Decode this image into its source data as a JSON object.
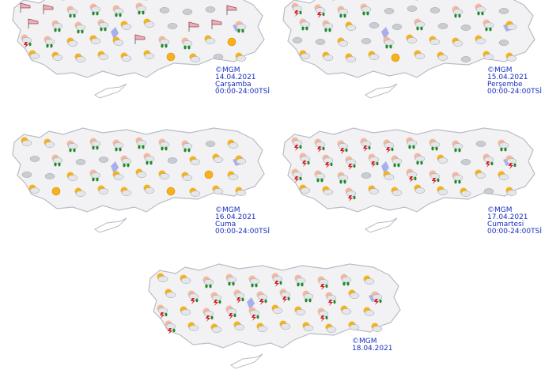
{
  "colors": {
    "land": "#f2f2f4",
    "border": "#b9bcc4",
    "lake": "#a8b0ec",
    "caption": "#1a2fbf",
    "sun": "#f5b21a",
    "rain": "#1e8a2a",
    "thunder": "#d42020",
    "cloud": "#c9ccd2"
  },
  "maps": [
    {
      "copyright": "©MGM",
      "date": "14.04.2021",
      "day": "Çarşamba",
      "period": "00:00-24:00TSİ",
      "icons": [
        "wind",
        "wind",
        "rain",
        "rain",
        "rain",
        "rain",
        "cloud",
        "cloud",
        "cloud",
        "wind",
        "wind",
        "rain",
        "rain",
        "rain",
        "partly-cloudy",
        "partly-cloudy",
        "cloud",
        "wind",
        "wind",
        "rain",
        "thunder",
        "rain",
        "partly-cloudy",
        "partly-cloudy",
        "partly-cloudy",
        "wind",
        "rain",
        "rain",
        "partly-cloudy",
        "sunny",
        "partly-cloudy",
        "partly-cloudy",
        "partly-cloudy",
        "partly-cloudy",
        "partly-cloudy",
        "partly-cloudy",
        "sunny",
        "partly-cloudy",
        "cloud",
        "partly-cloudy"
      ]
    },
    {
      "copyright": "©MGM",
      "date": "15.04.2021",
      "day": "Perşembe",
      "period": "00:00-24:00TSİ",
      "icons": [
        "thunder",
        "thunder",
        "rain",
        "rain",
        "cloud",
        "cloud",
        "cloud",
        "rain",
        "rain",
        "cloud",
        "rain",
        "rain",
        "partly-cloudy",
        "cloud",
        "cloud",
        "rain",
        "cloud",
        "cloud",
        "rain",
        "partly-cloudy",
        "cloud",
        "cloud",
        "partly-cloudy",
        "cloud",
        "rain",
        "partly-cloudy",
        "partly-cloudy",
        "partly-cloudy",
        "partly-cloudy",
        "cloud",
        "partly-cloudy",
        "partly-cloudy",
        "partly-cloudy",
        "partly-cloudy",
        "sunny",
        "partly-cloudy",
        "partly-cloudy",
        "cloud",
        "partly-cloudy",
        "partly-cloudy"
      ]
    },
    {
      "copyright": "©MGM",
      "date": "16.04.2021",
      "day": "Cuma",
      "period": "00:00-24:00TSİ",
      "icons": [
        "partly-cloudy",
        "partly-cloudy",
        "rain",
        "rain",
        "rain",
        "rain",
        "rain",
        "rain",
        "cloud",
        "partly-cloudy",
        "cloud",
        "rain",
        "cloud",
        "cloud",
        "rain",
        "rain",
        "cloud",
        "partly-cloudy",
        "partly-cloudy",
        "partly-cloudy",
        "cloud",
        "cloud",
        "partly-cloudy",
        "rain",
        "partly-cloudy",
        "partly-cloudy",
        "partly-cloudy",
        "partly-cloudy",
        "sunny",
        "partly-cloudy",
        "partly-cloudy",
        "sunny",
        "partly-cloudy",
        "partly-cloudy",
        "partly-cloudy",
        "partly-cloudy",
        "sunny",
        "partly-cloudy",
        "partly-cloudy",
        "partly-cloudy"
      ]
    },
    {
      "copyright": "©MGM",
      "date": "17.04.2021",
      "day": "Cumartesi",
      "period": "00:00-24:00TSİ",
      "icons": [
        "thunder",
        "thunder",
        "thunder",
        "thunder",
        "thunder",
        "rain",
        "rain",
        "rain",
        "cloud",
        "rain",
        "thunder",
        "thunder",
        "thunder",
        "thunder",
        "rain",
        "rain",
        "partly-cloudy",
        "cloud",
        "thunder",
        "thunder",
        "thunder",
        "rain",
        "rain",
        "cloud",
        "partly-cloudy",
        "thunder",
        "thunder",
        "rain",
        "partly-cloudy",
        "partly-cloudy",
        "partly-cloudy",
        "partly-cloudy",
        "thunder",
        "partly-cloudy",
        "partly-cloudy",
        "partly-cloudy",
        "partly-cloudy",
        "partly-cloudy",
        "cloud",
        "partly-cloudy"
      ]
    },
    {
      "copyright": "©MGM",
      "date": "18.04.2021",
      "icons": [
        "partly-cloudy",
        "partly-cloudy",
        "rain",
        "rain",
        "rain",
        "thunder",
        "rain",
        "thunder",
        "rain",
        "partly-cloudy",
        "partly-cloudy",
        "thunder",
        "thunder",
        "thunder",
        "thunder",
        "thunder",
        "rain",
        "thunder",
        "partly-cloudy",
        "thunder",
        "thunder",
        "partly-cloudy",
        "thunder",
        "thunder",
        "thunder",
        "partly-cloudy",
        "partly-cloudy",
        "thunder",
        "partly-cloudy",
        "partly-cloudy",
        "thunder",
        "partly-cloudy",
        "partly-cloudy",
        "partly-cloudy",
        "partly-cloudy",
        "partly-cloudy",
        "partly-cloudy",
        "partly-cloudy",
        "partly-cloudy",
        "partly-cloudy"
      ]
    }
  ]
}
